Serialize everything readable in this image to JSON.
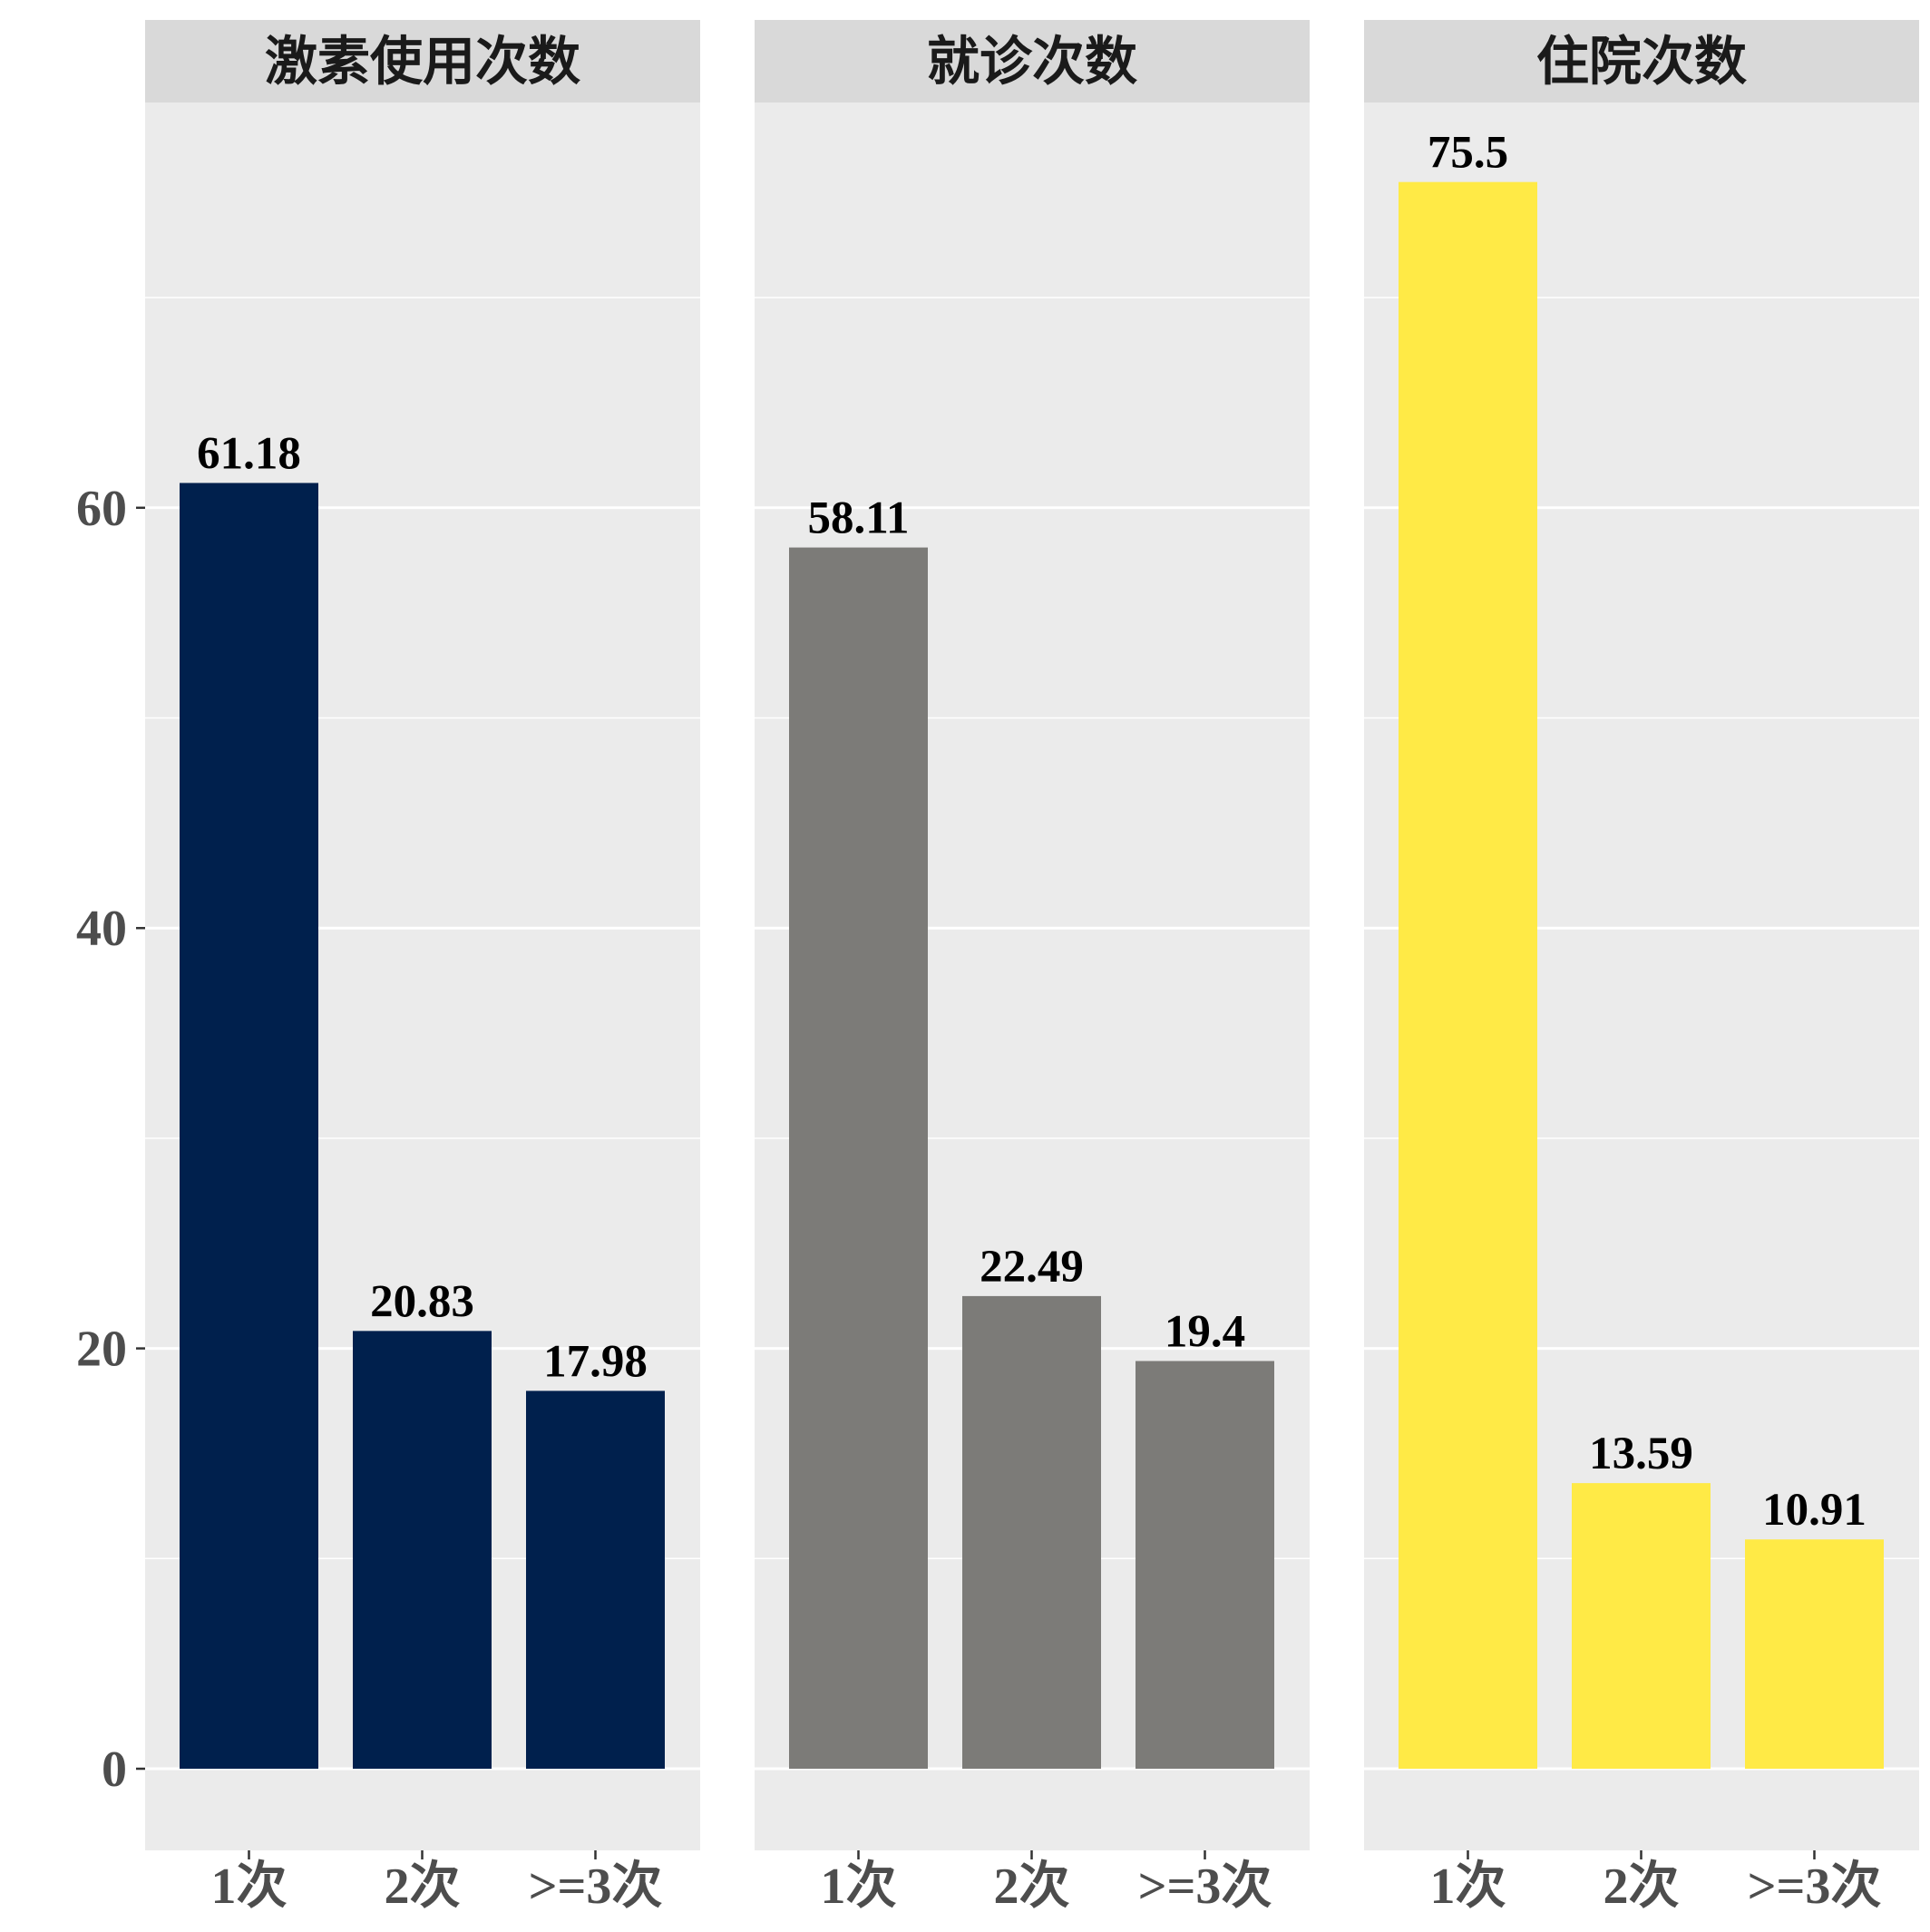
{
  "chart_data": [
    {
      "type": "bar",
      "title": "激素使用次数",
      "categories": [
        "1次",
        "2次",
        ">=3次"
      ],
      "values": [
        61.18,
        20.83,
        17.98
      ],
      "labels": [
        "61.18",
        "20.83",
        "17.98"
      ],
      "color": "#00204D"
    },
    {
      "type": "bar",
      "title": "就诊次数",
      "categories": [
        "1次",
        "2次",
        ">=3次"
      ],
      "values": [
        58.11,
        22.49,
        19.4
      ],
      "labels": [
        "58.11",
        "22.49",
        "19.4"
      ],
      "color": "#7C7B78"
    },
    {
      "type": "bar",
      "title": "住院次数",
      "categories": [
        "1次",
        "2次",
        ">=3次"
      ],
      "values": [
        75.5,
        13.59,
        10.91
      ],
      "labels": [
        "75.5",
        "13.59",
        "10.91"
      ],
      "color": "#FFEA46"
    }
  ],
  "y_axis": {
    "ticks": [
      0,
      20,
      40,
      60
    ],
    "tick_labels": [
      "0",
      "20",
      "40",
      "60"
    ],
    "ylim": [
      -3.8,
      79.3
    ]
  },
  "grid": true,
  "style": {
    "panel_background": "#EBEBEB",
    "strip_background": "#D9D9D9",
    "gridline_color": "#FFFFFF",
    "axis_text_color": "#4D4D4D",
    "label_text_color": "#000000"
  }
}
